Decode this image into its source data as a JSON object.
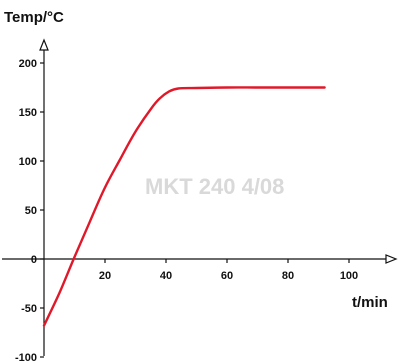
{
  "chart_data": {
    "type": "line",
    "title": "",
    "xlabel": "t/min",
    "ylabel": "Temp/°C",
    "watermark": "MKT 240 4/08",
    "xlim": [
      -3,
      105
    ],
    "ylim": [
      -105,
      218
    ],
    "x_ticks": [
      20,
      40,
      60,
      80,
      100
    ],
    "y_ticks": [
      -100,
      -50,
      0,
      50,
      100,
      150,
      200
    ],
    "grid": false,
    "legend": "none",
    "series": [
      {
        "color": "#e0192a",
        "points": [
          [
            0,
            -68
          ],
          [
            5,
            -35
          ],
          [
            10,
            2
          ],
          [
            15,
            38
          ],
          [
            20,
            73
          ],
          [
            25,
            102
          ],
          [
            30,
            130
          ],
          [
            35,
            153
          ],
          [
            38,
            164
          ],
          [
            41,
            171
          ],
          [
            44,
            174
          ],
          [
            50,
            174.5
          ],
          [
            60,
            175
          ],
          [
            70,
            175
          ],
          [
            80,
            175
          ],
          [
            92,
            175
          ]
        ]
      }
    ]
  }
}
